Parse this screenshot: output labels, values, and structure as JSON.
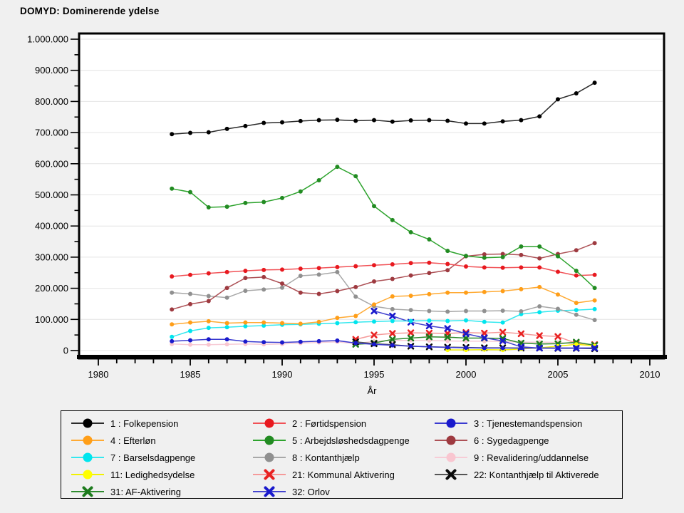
{
  "title": "DOMYD: Dominerende ydelse",
  "colors": {
    "page_bg": "#f0f0f0",
    "plot_bg": "#ffffff",
    "grid": "#e4e4e4",
    "frame": "#000000"
  },
  "axes": {
    "x_label": "År",
    "x_major_ticks": [
      {
        "label": "1980",
        "year": 1980
      },
      {
        "label": "1985",
        "year": 1985
      },
      {
        "label": "1990",
        "year": 1990
      },
      {
        "label": "1995",
        "year": 1995
      },
      {
        "label": "2000",
        "year": 2000
      },
      {
        "label": "2005",
        "year": 2005
      },
      {
        "label": "2010",
        "year": 2010
      }
    ],
    "y_major_ticks": [
      {
        "label": "1.000.000",
        "value": 1000000
      },
      {
        "label": "900.000",
        "value": 900000
      },
      {
        "label": "800.000",
        "value": 800000
      },
      {
        "label": "700.000",
        "value": 700000
      },
      {
        "label": "600.000",
        "value": 600000
      },
      {
        "label": "500.000",
        "value": 500000
      },
      {
        "label": "400.000",
        "value": 400000
      },
      {
        "label": "300.000",
        "value": 300000
      },
      {
        "label": "200.000",
        "value": 200000
      },
      {
        "label": "100.000",
        "value": 100000
      },
      {
        "label": "0",
        "value": 0
      }
    ]
  },
  "chart_data": {
    "type": "line",
    "title": "DOMYD: Dominerende ydelse",
    "xlabel": "År",
    "ylabel": "",
    "x_range": [
      1980,
      2010
    ],
    "ylim": [
      0,
      1000000
    ],
    "grid": "horizontal",
    "legend_position": "bottom",
    "x": [
      1984,
      1985,
      1986,
      1987,
      1988,
      1989,
      1990,
      1991,
      1992,
      1993,
      1994,
      1995,
      1996,
      1997,
      1998,
      1999,
      2000,
      2001,
      2002,
      2003,
      2004,
      2005,
      2006,
      2007
    ],
    "draw_order": [
      "s9",
      "s21",
      "s31",
      "s22",
      "s11",
      "s32",
      "s3",
      "s7",
      "s8",
      "s4",
      "s6",
      "s2",
      "s5",
      "s1"
    ],
    "series": [
      {
        "id": "s1",
        "label": "1 : Folkepension",
        "color": "#000000",
        "line_color": "#2a2a2a",
        "marker": "dot",
        "values": [
          695000,
          699000,
          701000,
          712000,
          721000,
          731000,
          733000,
          737000,
          740000,
          741000,
          738000,
          740000,
          735000,
          739000,
          740000,
          738000,
          729000,
          729000,
          736000,
          740000,
          752000,
          807000,
          826000,
          860000
        ]
      },
      {
        "id": "s2",
        "label": "2 : Førtidspension",
        "color": "#e8191f",
        "line_color": "#f15156",
        "marker": "dot",
        "values": [
          238000,
          243000,
          248000,
          252000,
          256000,
          259000,
          260000,
          263000,
          265000,
          268000,
          271000,
          274000,
          277000,
          281000,
          282000,
          278000,
          270000,
          267000,
          266000,
          267000,
          267000,
          253000,
          241000,
          243000
        ]
      },
      {
        "id": "s3",
        "label": "3 : Tjenestemandspension",
        "color": "#1a1acc",
        "line_color": "#3a3ad0",
        "marker": "dot",
        "values": [
          30000,
          33000,
          36000,
          36000,
          29000,
          27000,
          26000,
          28000,
          30000,
          32000,
          24000,
          20000,
          17000,
          14000,
          12000,
          10000,
          9000,
          8000,
          8000,
          8000,
          8000,
          8000,
          8000,
          8000
        ]
      },
      {
        "id": "s4",
        "label": "4 : Efterløn",
        "color": "#ff9e18",
        "line_color": "#ffaa33",
        "marker": "dot",
        "values": [
          84000,
          90000,
          94000,
          88000,
          90000,
          90000,
          88000,
          86000,
          92000,
          105000,
          111000,
          148000,
          174000,
          176000,
          181000,
          186000,
          186000,
          188000,
          191000,
          197000,
          204000,
          180000,
          153000,
          161000
        ]
      },
      {
        "id": "s5",
        "label": "5 : Arbejdsløshedsdagpenge",
        "color": "#228b22",
        "line_color": "#2da32d",
        "marker": "dot",
        "values": [
          520000,
          509000,
          460000,
          462000,
          474000,
          477000,
          490000,
          511000,
          547000,
          590000,
          560000,
          464000,
          419000,
          380000,
          357000,
          320000,
          304000,
          298000,
          300000,
          334000,
          334000,
          303000,
          256000,
          201000
        ]
      },
      {
        "id": "s6",
        "label": "6 : Sygedagpenge",
        "color": "#9e3a40",
        "line_color": "#ad5156",
        "marker": "dot",
        "values": [
          132000,
          149000,
          159000,
          201000,
          233000,
          236000,
          215000,
          186000,
          182000,
          191000,
          204000,
          222000,
          230000,
          241000,
          249000,
          258000,
          303000,
          309000,
          310000,
          307000,
          296000,
          310000,
          322000,
          345000
        ]
      },
      {
        "id": "s7",
        "label": "7 : Barselsdagpenge",
        "color": "#00e5ee",
        "line_color": "#33e8ef",
        "marker": "dot",
        "values": [
          44000,
          63000,
          73000,
          75000,
          78000,
          80000,
          83000,
          84000,
          86000,
          88000,
          91000,
          93000,
          95000,
          95000,
          96000,
          95000,
          97000,
          92000,
          90000,
          117000,
          123000,
          128000,
          130000,
          133000
        ]
      },
      {
        "id": "s8",
        "label": "8 : Kontanthjælp",
        "color": "#909090",
        "line_color": "#a8a8a8",
        "marker": "dot",
        "values": [
          186000,
          182000,
          175000,
          170000,
          192000,
          196000,
          202000,
          240000,
          244000,
          252000,
          173000,
          142000,
          133000,
          130000,
          127000,
          125000,
          127000,
          127000,
          128000,
          126000,
          142000,
          134000,
          115000,
          98000
        ]
      },
      {
        "id": "s9",
        "label": "9 : Revalidering/uddannelse",
        "color": "#f9c6d0",
        "line_color": "#f7ccd6",
        "marker": "dot",
        "values": [
          21000,
          19000,
          19000,
          20000,
          21000,
          20000,
          21000,
          24000,
          26000,
          28000,
          22000,
          30000,
          32000,
          33000,
          32000,
          31000,
          30000,
          30000,
          29000,
          27000,
          27000,
          26000,
          21000,
          16000
        ]
      },
      {
        "id": "s11",
        "label": "11: Ledighedsydelse",
        "color": "#ffff00",
        "line_color": "#f2f200",
        "marker": "dot",
        "values": [
          null,
          null,
          null,
          null,
          null,
          null,
          null,
          null,
          null,
          null,
          null,
          null,
          null,
          null,
          null,
          2000,
          2000,
          3000,
          2000,
          5000,
          9000,
          14000,
          20000,
          15000
        ]
      },
      {
        "id": "s21",
        "label": "21: Kommunal Aktivering",
        "color": "#e82222",
        "line_color": "#f59a9a",
        "marker": "x",
        "values": [
          null,
          null,
          null,
          null,
          null,
          null,
          null,
          null,
          null,
          null,
          36000,
          50000,
          55000,
          57000,
          56000,
          55000,
          58000,
          56000,
          59000,
          54000,
          48000,
          45000,
          23000,
          19000
        ]
      },
      {
        "id": "s22",
        "label": "22: Kontanthjælp til Aktiverede",
        "color": "#0a0a0a",
        "line_color": "#555555",
        "marker": "x",
        "values": [
          null,
          null,
          null,
          null,
          null,
          null,
          null,
          null,
          null,
          null,
          28000,
          22000,
          19000,
          14000,
          12000,
          11000,
          10000,
          9000,
          9000,
          8000,
          8000,
          7000,
          7000,
          6000
        ]
      },
      {
        "id": "s31",
        "label": "31: AF-Aktivering",
        "color": "#1e7b1e",
        "line_color": "#2e8b2e",
        "marker": "x",
        "values": [
          null,
          null,
          null,
          null,
          null,
          null,
          null,
          null,
          null,
          null,
          20000,
          24000,
          36000,
          40000,
          44000,
          43000,
          40000,
          40000,
          39000,
          24000,
          21000,
          22000,
          27000,
          17000
        ]
      },
      {
        "id": "s32",
        "label": "32: Orlov",
        "color": "#1a1acc",
        "line_color": "#4444d0",
        "marker": "x",
        "values": [
          null,
          null,
          null,
          null,
          null,
          null,
          null,
          null,
          null,
          null,
          null,
          127000,
          111000,
          91000,
          79000,
          71000,
          54000,
          41000,
          31000,
          12000,
          8000,
          8000,
          8000,
          8000
        ]
      }
    ]
  },
  "legend": {
    "items": [
      {
        "series": "s1"
      },
      {
        "series": "s2"
      },
      {
        "series": "s3"
      },
      {
        "series": "s4"
      },
      {
        "series": "s5"
      },
      {
        "series": "s6"
      },
      {
        "series": "s7"
      },
      {
        "series": "s8"
      },
      {
        "series": "s9"
      },
      {
        "series": "s11"
      },
      {
        "series": "s21"
      },
      {
        "series": "s22"
      },
      {
        "series": "s31"
      },
      {
        "series": "s32"
      }
    ]
  }
}
